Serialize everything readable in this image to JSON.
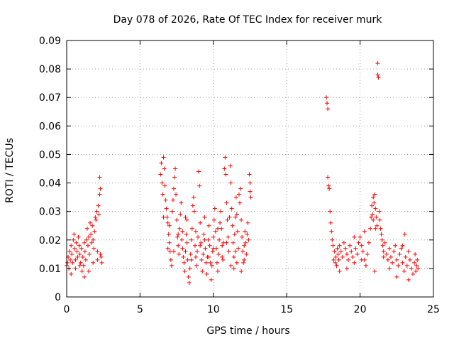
{
  "chart_data": {
    "type": "scatter",
    "title": "Day 078 of 2026, Rate Of TEC Index for receiver murk",
    "xlabel": "GPS time / hours",
    "ylabel": "ROTI / TECUs",
    "xlim": [
      0,
      25
    ],
    "ylim": [
      0,
      0.09
    ],
    "xticks": [
      0,
      5,
      10,
      15,
      20,
      25
    ],
    "xtick_labels": [
      "0",
      "5",
      "10",
      "15",
      "20",
      "25"
    ],
    "yticks": [
      0,
      0.01,
      0.02,
      0.03,
      0.04,
      0.05,
      0.06,
      0.07,
      0.08,
      0.09
    ],
    "ytick_labels": [
      "0",
      "0.01",
      "0.02",
      "0.03",
      "0.04",
      "0.05",
      "0.06",
      "0.07",
      "0.08",
      "0.09"
    ],
    "grid": true,
    "marker": "+",
    "marker_color": "#ff0000",
    "series": [
      {
        "values": [
          [
            0.0,
            0.011
          ],
          [
            0.05,
            0.012
          ],
          [
            0.1,
            0.014
          ],
          [
            0.15,
            0.01
          ],
          [
            0.2,
            0.016
          ],
          [
            0.25,
            0.013
          ],
          [
            0.3,
            0.018
          ],
          [
            0.35,
            0.015
          ],
          [
            0.4,
            0.012
          ],
          [
            0.45,
            0.02
          ],
          [
            0.5,
            0.022
          ],
          [
            0.55,
            0.017
          ],
          [
            0.6,
            0.013
          ],
          [
            0.65,
            0.019
          ],
          [
            0.7,
            0.016
          ],
          [
            0.75,
            0.014
          ],
          [
            0.8,
            0.021
          ],
          [
            0.85,
            0.018
          ],
          [
            0.9,
            0.015
          ],
          [
            0.95,
            0.012
          ],
          [
            1.0,
            0.017
          ],
          [
            1.05,
            0.009
          ],
          [
            1.1,
            0.014
          ],
          [
            1.15,
            0.011
          ],
          [
            1.2,
            0.019
          ],
          [
            1.25,
            0.016
          ],
          [
            1.3,
            0.013
          ],
          [
            1.35,
            0.02
          ],
          [
            1.4,
            0.024
          ],
          [
            1.45,
            0.018
          ],
          [
            1.5,
            0.021
          ],
          [
            1.55,
            0.015
          ],
          [
            1.6,
            0.026
          ],
          [
            1.65,
            0.022
          ],
          [
            1.7,
            0.019
          ],
          [
            1.75,
            0.025
          ],
          [
            1.8,
            0.02
          ],
          [
            1.85,
            0.017
          ],
          [
            1.9,
            0.023
          ],
          [
            1.95,
            0.028
          ],
          [
            2.0,
            0.027
          ],
          [
            2.05,
            0.03
          ],
          [
            2.1,
            0.016
          ],
          [
            2.15,
            0.032
          ],
          [
            2.2,
            0.029
          ],
          [
            2.25,
            0.036
          ],
          [
            2.3,
            0.038
          ],
          [
            2.25,
            0.042
          ],
          [
            2.35,
            0.014
          ],
          [
            2.4,
            0.012
          ],
          [
            0.3,
            0.008
          ],
          [
            0.6,
            0.01
          ],
          [
            0.9,
            0.011
          ],
          [
            1.2,
            0.007
          ],
          [
            1.5,
            0.009
          ],
          [
            1.8,
            0.012
          ],
          [
            2.1,
            0.013
          ],
          [
            2.3,
            0.015
          ],
          [
            6.4,
            0.043
          ],
          [
            6.45,
            0.047
          ],
          [
            6.5,
            0.04
          ],
          [
            6.55,
            0.036
          ],
          [
            6.6,
            0.049
          ],
          [
            6.65,
            0.045
          ],
          [
            6.7,
            0.039
          ],
          [
            6.75,
            0.034
          ],
          [
            6.8,
            0.031
          ],
          [
            6.85,
            0.028
          ],
          [
            6.9,
            0.026
          ],
          [
            6.95,
            0.022
          ],
          [
            7.0,
            0.019
          ],
          [
            7.05,
            0.016
          ],
          [
            7.1,
            0.013
          ],
          [
            7.15,
            0.011
          ],
          [
            7.2,
            0.03
          ],
          [
            7.25,
            0.034
          ],
          [
            7.3,
            0.038
          ],
          [
            7.35,
            0.042
          ],
          [
            7.4,
            0.045
          ],
          [
            7.45,
            0.036
          ],
          [
            7.5,
            0.027
          ],
          [
            7.55,
            0.021
          ],
          [
            7.6,
            0.018
          ],
          [
            7.65,
            0.015
          ],
          [
            7.7,
            0.024
          ],
          [
            7.75,
            0.029
          ],
          [
            7.8,
            0.033
          ],
          [
            7.85,
            0.02
          ],
          [
            7.9,
            0.017
          ],
          [
            7.95,
            0.014
          ],
          [
            8.0,
            0.012
          ],
          [
            8.05,
            0.009
          ],
          [
            8.1,
            0.016
          ],
          [
            8.15,
            0.022
          ],
          [
            8.2,
            0.019
          ],
          [
            8.25,
            0.013
          ],
          [
            8.3,
            0.007
          ],
          [
            8.35,
            0.005
          ],
          [
            8.4,
            0.01
          ],
          [
            8.45,
            0.015
          ],
          [
            8.5,
            0.02
          ],
          [
            8.55,
            0.024
          ],
          [
            8.6,
            0.032
          ],
          [
            8.65,
            0.035
          ],
          [
            8.7,
            0.03
          ],
          [
            8.75,
            0.018
          ],
          [
            8.8,
            0.014
          ],
          [
            8.85,
            0.011
          ],
          [
            8.9,
            0.016
          ],
          [
            8.95,
            0.021
          ],
          [
            9.0,
            0.044
          ],
          [
            9.05,
            0.039
          ],
          [
            9.1,
            0.026
          ],
          [
            9.15,
            0.019
          ],
          [
            9.2,
            0.013
          ],
          [
            9.25,
            0.009
          ],
          [
            9.3,
            0.015
          ],
          [
            9.35,
            0.022
          ],
          [
            9.4,
            0.028
          ],
          [
            9.45,
            0.017
          ],
          [
            9.5,
            0.012
          ],
          [
            9.55,
            0.008
          ],
          [
            9.6,
            0.014
          ],
          [
            9.65,
            0.02
          ],
          [
            9.7,
            0.025
          ],
          [
            9.75,
            0.018
          ],
          [
            9.8,
            0.012
          ],
          [
            9.85,
            0.006
          ],
          [
            9.9,
            0.011
          ],
          [
            9.95,
            0.016
          ],
          [
            10.0,
            0.021
          ],
          [
            10.05,
            0.027
          ],
          [
            10.1,
            0.031
          ],
          [
            10.15,
            0.023
          ],
          [
            10.2,
            0.017
          ],
          [
            10.25,
            0.012
          ],
          [
            10.3,
            0.009
          ],
          [
            10.35,
            0.015
          ],
          [
            10.4,
            0.02
          ],
          [
            10.45,
            0.026
          ],
          [
            10.5,
            0.03
          ],
          [
            10.55,
            0.024
          ],
          [
            10.6,
            0.018
          ],
          [
            10.65,
            0.013
          ],
          [
            10.7,
            0.019
          ],
          [
            10.75,
            0.045
          ],
          [
            10.8,
            0.049
          ],
          [
            10.85,
            0.043
          ],
          [
            10.9,
            0.033
          ],
          [
            10.95,
            0.027
          ],
          [
            11.0,
            0.021
          ],
          [
            11.05,
            0.016
          ],
          [
            11.1,
            0.028
          ],
          [
            11.15,
            0.046
          ],
          [
            11.2,
            0.04
          ],
          [
            11.25,
            0.031
          ],
          [
            11.3,
            0.025
          ],
          [
            11.35,
            0.019
          ],
          [
            11.4,
            0.014
          ],
          [
            11.45,
            0.022
          ],
          [
            11.5,
            0.028
          ],
          [
            11.55,
            0.035
          ],
          [
            11.6,
            0.029
          ],
          [
            11.65,
            0.023
          ],
          [
            11.7,
            0.017
          ],
          [
            11.75,
            0.036
          ],
          [
            11.8,
            0.033
          ],
          [
            11.85,
            0.038
          ],
          [
            11.9,
            0.027
          ],
          [
            11.95,
            0.021
          ],
          [
            12.0,
            0.016
          ],
          [
            12.05,
            0.012
          ],
          [
            12.1,
            0.018
          ],
          [
            12.15,
            0.023
          ],
          [
            12.2,
            0.019
          ],
          [
            12.25,
            0.015
          ],
          [
            12.3,
            0.022
          ],
          [
            12.35,
            0.026
          ],
          [
            12.4,
            0.02
          ],
          [
            12.45,
            0.043
          ],
          [
            12.5,
            0.04
          ],
          [
            12.55,
            0.035
          ],
          [
            12.5,
            0.037
          ],
          [
            11.9,
            0.009
          ],
          [
            11.6,
            0.012
          ],
          [
            11.4,
            0.01
          ],
          [
            7.0,
            0.025
          ],
          [
            7.6,
            0.022
          ],
          [
            8.2,
            0.027
          ],
          [
            8.8,
            0.023
          ],
          [
            9.4,
            0.02
          ],
          [
            10.0,
            0.017
          ],
          [
            10.6,
            0.014
          ],
          [
            11.2,
            0.011
          ],
          [
            7.3,
            0.016
          ],
          [
            7.9,
            0.023
          ],
          [
            8.5,
            0.013
          ],
          [
            9.1,
            0.018
          ],
          [
            9.7,
            0.014
          ],
          [
            10.3,
            0.024
          ],
          [
            10.9,
            0.019
          ],
          [
            11.5,
            0.016
          ],
          [
            12.1,
            0.013
          ],
          [
            6.6,
            0.028
          ],
          [
            6.9,
            0.017
          ],
          [
            8.1,
            0.028
          ],
          [
            17.7,
            0.07
          ],
          [
            17.75,
            0.068
          ],
          [
            17.8,
            0.066
          ],
          [
            17.8,
            0.042
          ],
          [
            17.85,
            0.039
          ],
          [
            17.9,
            0.038
          ],
          [
            17.95,
            0.03
          ],
          [
            18.0,
            0.026
          ],
          [
            18.05,
            0.023
          ],
          [
            18.1,
            0.02
          ],
          [
            18.15,
            0.018
          ],
          [
            18.2,
            0.013
          ],
          [
            18.25,
            0.016
          ],
          [
            18.3,
            0.012
          ],
          [
            18.35,
            0.014
          ],
          [
            18.4,
            0.011
          ],
          [
            18.45,
            0.017
          ],
          [
            18.5,
            0.015
          ],
          [
            18.55,
            0.013
          ],
          [
            18.6,
            0.018
          ],
          [
            18.7,
            0.016
          ],
          [
            18.8,
            0.014
          ],
          [
            18.9,
            0.019
          ],
          [
            19.0,
            0.017
          ],
          [
            19.1,
            0.015
          ],
          [
            19.2,
            0.013
          ],
          [
            19.3,
            0.018
          ],
          [
            19.4,
            0.016
          ],
          [
            19.5,
            0.014
          ],
          [
            19.6,
            0.012
          ],
          [
            19.7,
            0.017
          ],
          [
            19.8,
            0.015
          ],
          [
            19.9,
            0.019
          ],
          [
            20.0,
            0.021
          ],
          [
            20.1,
            0.018
          ],
          [
            20.2,
            0.016
          ],
          [
            20.3,
            0.013
          ],
          [
            20.4,
            0.011
          ],
          [
            20.5,
            0.015
          ],
          [
            20.6,
            0.019
          ],
          [
            20.7,
            0.024
          ],
          [
            20.75,
            0.028
          ],
          [
            20.8,
            0.032
          ],
          [
            20.85,
            0.029
          ],
          [
            20.9,
            0.027
          ],
          [
            20.95,
            0.033
          ],
          [
            21.0,
            0.036
          ],
          [
            21.05,
            0.031
          ],
          [
            21.1,
            0.028
          ],
          [
            21.15,
            0.025
          ],
          [
            21.2,
            0.082
          ],
          [
            21.2,
            0.078
          ],
          [
            21.25,
            0.077
          ],
          [
            21.3,
            0.03
          ],
          [
            21.35,
            0.027
          ],
          [
            21.4,
            0.024
          ],
          [
            21.45,
            0.022
          ],
          [
            21.5,
            0.02
          ],
          [
            21.55,
            0.018
          ],
          [
            21.6,
            0.016
          ],
          [
            21.7,
            0.019
          ],
          [
            21.8,
            0.015
          ],
          [
            21.9,
            0.013
          ],
          [
            22.0,
            0.017
          ],
          [
            22.1,
            0.014
          ],
          [
            22.2,
            0.012
          ],
          [
            22.3,
            0.016
          ],
          [
            22.4,
            0.018
          ],
          [
            22.5,
            0.013
          ],
          [
            22.6,
            0.011
          ],
          [
            22.7,
            0.015
          ],
          [
            22.8,
            0.017
          ],
          [
            22.9,
            0.012
          ],
          [
            23.0,
            0.009
          ],
          [
            23.05,
            0.022
          ],
          [
            23.1,
            0.014
          ],
          [
            23.2,
            0.011
          ],
          [
            23.3,
            0.016
          ],
          [
            23.4,
            0.013
          ],
          [
            23.5,
            0.01
          ],
          [
            23.6,
            0.008
          ],
          [
            23.7,
            0.012
          ],
          [
            23.75,
            0.015
          ],
          [
            23.8,
            0.009
          ],
          [
            23.85,
            0.011
          ],
          [
            23.9,
            0.013
          ],
          [
            23.95,
            0.01
          ],
          [
            22.5,
            0.007
          ],
          [
            23.3,
            0.006
          ],
          [
            21.0,
            0.009
          ],
          [
            19.1,
            0.01
          ],
          [
            19.6,
            0.021
          ],
          [
            20.3,
            0.023
          ],
          [
            18.6,
            0.009
          ],
          [
            21.6,
            0.014
          ],
          [
            22.0,
            0.01
          ],
          [
            20.9,
            0.035
          ],
          [
            21.05,
            0.024
          ],
          [
            20.1,
            0.013
          ],
          [
            22.9,
            0.018
          ]
        ]
      }
    ]
  }
}
